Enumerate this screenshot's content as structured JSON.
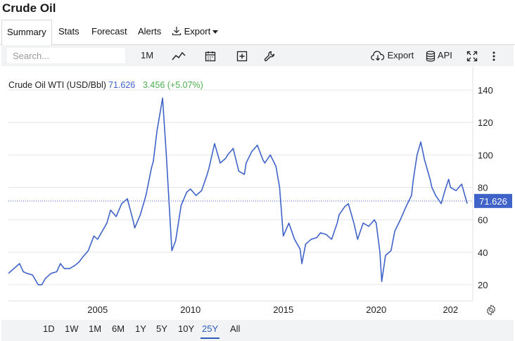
{
  "page": {
    "title": "Crude Oil"
  },
  "tabs": [
    {
      "label": "Summary",
      "active": true
    },
    {
      "label": "Stats"
    },
    {
      "label": "Forecast"
    },
    {
      "label": "Alerts"
    },
    {
      "label": "Export"
    }
  ],
  "toolbar": {
    "search_placeholder": "Search...",
    "interval_label": "1M",
    "export_label": "Export",
    "api_label": "API",
    "icons": [
      "line-chart-icon",
      "calendar-icon",
      "add-plus-icon",
      "wrench-icon",
      "cloud-download-icon",
      "database-icon",
      "fullscreen-icon",
      "more-vertical-icon"
    ]
  },
  "ranges": [
    "1D",
    "1W",
    "1M",
    "6M",
    "1Y",
    "5Y",
    "10Y",
    "25Y",
    "All"
  ],
  "active_range": "25Y",
  "legend": {
    "name": "Crude Oil WTI (USD/Bbl)",
    "value": "71.626",
    "change": "3.456 (+5.07%)"
  },
  "last_value_label": "71.626",
  "colors": {
    "line": "#3f63c9",
    "change_positive": "#4caf50",
    "value_text": "#3f63c9",
    "badge_bg": "#3f63c9"
  },
  "chart_data": {
    "type": "line",
    "x_ticks": [
      "2005",
      "2010",
      "2015",
      "2020",
      "202"
    ],
    "y_ticks": [
      20,
      40,
      60,
      80,
      100,
      120,
      140
    ],
    "xlim": [
      2000.2,
      2025.2
    ],
    "ylim": [
      10,
      150
    ],
    "last_value": 71.626,
    "grid": "horizontal",
    "series": [
      {
        "x": [
          2000.2,
          2000.5,
          2000.8,
          2001.0,
          2001.2,
          2001.5,
          2001.8,
          2002.0,
          2002.2,
          2002.5,
          2002.8,
          2003.0,
          2003.2,
          2003.5,
          2003.8,
          2004.0,
          2004.2,
          2004.5,
          2004.8,
          2005.0,
          2005.2,
          2005.5,
          2005.7,
          2006.0,
          2006.3,
          2006.6,
          2006.9,
          2007.0,
          2007.3,
          2007.6,
          2007.9,
          2008.0,
          2008.2,
          2008.5,
          2008.7,
          2008.9,
          2009.0,
          2009.2,
          2009.5,
          2009.8,
          2010.0,
          2010.3,
          2010.6,
          2010.9,
          2011.0,
          2011.3,
          2011.6,
          2011.9,
          2012.0,
          2012.3,
          2012.6,
          2012.9,
          2013.0,
          2013.3,
          2013.6,
          2013.9,
          2014.0,
          2014.3,
          2014.6,
          2014.8,
          2015.0,
          2015.3,
          2015.6,
          2015.9,
          2016.0,
          2016.2,
          2016.5,
          2016.8,
          2017.0,
          2017.3,
          2017.6,
          2017.9,
          2018.0,
          2018.3,
          2018.5,
          2018.8,
          2019.0,
          2019.3,
          2019.6,
          2019.9,
          2020.0,
          2020.2,
          2020.3,
          2020.5,
          2020.8,
          2021.0,
          2021.3,
          2021.6,
          2021.9,
          2022.0,
          2022.2,
          2022.4,
          2022.6,
          2022.9,
          2023.0,
          2023.2,
          2023.5,
          2023.7,
          2023.9,
          2024.0,
          2024.3,
          2024.6,
          2024.9
        ],
        "y": [
          27,
          30,
          33,
          28,
          27,
          26,
          20,
          20,
          24,
          27,
          28,
          33,
          30,
          30,
          32,
          34,
          37,
          41,
          50,
          48,
          52,
          58,
          66,
          62,
          70,
          73,
          60,
          55,
          63,
          75,
          92,
          96,
          115,
          135,
          100,
          60,
          41,
          47,
          69,
          77,
          79,
          75,
          78,
          88,
          92,
          107,
          95,
          98,
          100,
          104,
          90,
          88,
          95,
          102,
          106,
          97,
          95,
          100,
          93,
          80,
          50,
          58,
          48,
          42,
          33,
          45,
          48,
          49,
          52,
          51,
          48,
          58,
          63,
          68,
          70,
          58,
          48,
          58,
          56,
          60,
          58,
          40,
          22,
          38,
          41,
          53,
          60,
          68,
          75,
          85,
          100,
          108,
          97,
          85,
          80,
          75,
          70,
          78,
          85,
          80,
          78,
          82,
          70
        ]
      }
    ]
  }
}
